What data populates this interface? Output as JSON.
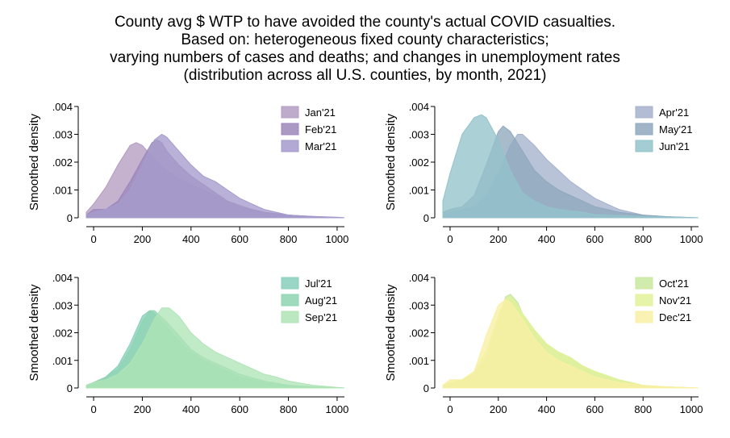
{
  "title_lines": [
    "County avg $ WTP to have avoided the county's actual COVID casualties.",
    "Based on: heterogeneous fixed county characteristics;",
    "varying numbers of cases and deaths; and changes in unemployment rates",
    "(distribution across all U.S. counties, by month, 2021)"
  ],
  "chart_data": [
    {
      "type": "area",
      "ylabel": "Smoothed density",
      "xlim": [
        -30,
        1030
      ],
      "ylim": [
        0,
        0.004
      ],
      "xticks": [
        "0",
        "200",
        "400",
        "600",
        "800",
        "1000"
      ],
      "yticks": [
        "0",
        ".001",
        ".002",
        ".003",
        ".004"
      ],
      "legend_position": "top-right",
      "series": [
        {
          "name": "Jan'21",
          "color": "#b39cc2",
          "x": [
            -30,
            0,
            50,
            100,
            150,
            175,
            200,
            250,
            300,
            350,
            400,
            450,
            500,
            550,
            600,
            650,
            700,
            750,
            800,
            900,
            1000,
            1030
          ],
          "y": [
            0.0002,
            0.0005,
            0.0011,
            0.0019,
            0.0026,
            0.0027,
            0.0026,
            0.0021,
            0.0017,
            0.0014,
            0.0012,
            0.001,
            0.0008,
            0.0006,
            0.00045,
            0.0003,
            0.0002,
            0.00015,
            0.0001,
            5e-05,
            2e-05,
            0
          ]
        },
        {
          "name": "Feb'21",
          "color": "#9d86bb",
          "x": [
            -30,
            0,
            50,
            100,
            150,
            200,
            240,
            260,
            280,
            300,
            350,
            400,
            450,
            500,
            550,
            600,
            650,
            700,
            800,
            900,
            1030
          ],
          "y": [
            0.0001,
            0.0003,
            0.0003,
            0.0006,
            0.0013,
            0.0021,
            0.0027,
            0.0028,
            0.0027,
            0.0024,
            0.0019,
            0.0015,
            0.0012,
            0.0009,
            0.0006,
            0.0004,
            0.0003,
            0.0002,
            0.0001,
            4e-05,
            0
          ]
        },
        {
          "name": "Mar'21",
          "color": "#a59bcc",
          "x": [
            -30,
            0,
            50,
            100,
            150,
            200,
            250,
            280,
            300,
            350,
            400,
            450,
            500,
            550,
            600,
            650,
            700,
            800,
            900,
            1030
          ],
          "y": [
            0.0001,
            0.0002,
            0.0003,
            0.0005,
            0.001,
            0.0019,
            0.0028,
            0.003,
            0.0029,
            0.0024,
            0.0019,
            0.0015,
            0.0013,
            0.001,
            0.0007,
            0.0005,
            0.0003,
            0.0001,
            5e-05,
            0
          ]
        }
      ]
    },
    {
      "type": "area",
      "ylabel": "Smoothed density",
      "xlim": [
        -30,
        1030
      ],
      "ylim": [
        0,
        0.004
      ],
      "xticks": [
        "0",
        "200",
        "400",
        "600",
        "800",
        "1000"
      ],
      "yticks": [
        "0",
        ".001",
        ".002",
        ".003",
        ".004"
      ],
      "legend_position": "top-right",
      "series": [
        {
          "name": "Apr'21",
          "color": "#a4b2cd",
          "x": [
            -30,
            0,
            50,
            100,
            150,
            200,
            250,
            280,
            300,
            350,
            400,
            450,
            500,
            550,
            600,
            650,
            700,
            800,
            900,
            1030
          ],
          "y": [
            0.0001,
            0.0002,
            0.0003,
            0.0004,
            0.0008,
            0.0016,
            0.0026,
            0.003,
            0.003,
            0.0026,
            0.0021,
            0.0017,
            0.0013,
            0.001,
            0.0007,
            0.0005,
            0.0003,
            0.0001,
            4e-05,
            0
          ]
        },
        {
          "name": "May'21",
          "color": "#8fa8bd",
          "x": [
            -30,
            0,
            50,
            100,
            150,
            200,
            220,
            250,
            300,
            350,
            400,
            450,
            500,
            550,
            600,
            650,
            700,
            800,
            900,
            1030
          ],
          "y": [
            0.0002,
            0.0003,
            0.0004,
            0.0008,
            0.0019,
            0.0031,
            0.0033,
            0.0031,
            0.0024,
            0.0017,
            0.0013,
            0.001,
            0.0008,
            0.0006,
            0.0004,
            0.0003,
            0.0002,
            0.0001,
            4e-05,
            0
          ]
        },
        {
          "name": "Jun'21",
          "color": "#93c3cb",
          "x": [
            -30,
            0,
            50,
            100,
            130,
            150,
            200,
            250,
            300,
            350,
            400,
            450,
            500,
            550,
            600,
            700,
            800,
            900,
            1030
          ],
          "y": [
            0.0006,
            0.0016,
            0.003,
            0.0036,
            0.0037,
            0.0036,
            0.0028,
            0.0017,
            0.0009,
            0.0006,
            0.0004,
            0.0003,
            0.00025,
            0.0002,
            0.00012,
            8e-05,
            5e-05,
            2e-05,
            0
          ]
        }
      ]
    },
    {
      "type": "area",
      "ylabel": "Smoothed density",
      "xlim": [
        -30,
        1030
      ],
      "ylim": [
        0,
        0.004
      ],
      "xticks": [
        "0",
        "200",
        "400",
        "600",
        "800",
        "1000"
      ],
      "yticks": [
        "0",
        ".001",
        ".002",
        ".003",
        ".004"
      ],
      "legend_position": "top-right",
      "series": [
        {
          "name": "Jul'21",
          "color": "#88cfbc",
          "x": [
            -30,
            0,
            50,
            100,
            150,
            200,
            230,
            250,
            300,
            350,
            400,
            450,
            500,
            550,
            600,
            700,
            800,
            900,
            1030
          ],
          "y": [
            0.0001,
            0.0002,
            0.0004,
            0.0008,
            0.0016,
            0.0026,
            0.0028,
            0.0027,
            0.0022,
            0.0017,
            0.0013,
            0.001,
            0.0008,
            0.0006,
            0.0004,
            0.0002,
            0.0001,
            4e-05,
            0
          ]
        },
        {
          "name": "Aug'21",
          "color": "#8ed4b2",
          "x": [
            -30,
            0,
            50,
            100,
            150,
            200,
            230,
            250,
            300,
            350,
            400,
            450,
            500,
            550,
            600,
            700,
            800,
            900,
            1030
          ],
          "y": [
            0.0001,
            0.0002,
            0.0004,
            0.0007,
            0.0014,
            0.0024,
            0.0028,
            0.0028,
            0.0024,
            0.0019,
            0.0014,
            0.0011,
            0.0009,
            0.0007,
            0.0005,
            0.00025,
            0.0001,
            4e-05,
            0
          ]
        },
        {
          "name": "Sep'21",
          "color": "#b0e4b6",
          "x": [
            -30,
            0,
            50,
            100,
            150,
            200,
            250,
            280,
            310,
            350,
            400,
            450,
            500,
            550,
            600,
            650,
            700,
            750,
            800,
            900,
            1030
          ],
          "y": [
            0.0001,
            0.0002,
            0.0003,
            0.0005,
            0.0009,
            0.0016,
            0.0025,
            0.0029,
            0.0029,
            0.0026,
            0.002,
            0.0016,
            0.0013,
            0.0011,
            0.0009,
            0.0007,
            0.0005,
            0.0004,
            0.00025,
            0.0001,
            0
          ]
        }
      ]
    },
    {
      "type": "area",
      "ylabel": "Smoothed density",
      "xlim": [
        -30,
        1030
      ],
      "ylim": [
        0,
        0.004
      ],
      "xticks": [
        "0",
        "200",
        "400",
        "600",
        "800",
        "1000"
      ],
      "yticks": [
        "0",
        ".001",
        ".002",
        ".003",
        ".004"
      ],
      "legend_position": "top-right",
      "series": [
        {
          "name": "Oct'21",
          "color": "#c8e89c",
          "x": [
            -30,
            0,
            50,
            100,
            150,
            200,
            230,
            250,
            280,
            300,
            350,
            400,
            450,
            500,
            550,
            600,
            700,
            800,
            900,
            1030
          ],
          "y": [
            0.0001,
            0.0002,
            0.0003,
            0.0005,
            0.0011,
            0.0024,
            0.0033,
            0.0034,
            0.0031,
            0.0027,
            0.0021,
            0.0016,
            0.0013,
            0.0011,
            0.0008,
            0.0006,
            0.0003,
            0.0001,
            4e-05,
            0
          ]
        },
        {
          "name": "Nov'21",
          "color": "#e2f29a",
          "x": [
            -30,
            0,
            50,
            100,
            150,
            200,
            230,
            250,
            280,
            300,
            350,
            400,
            450,
            500,
            550,
            600,
            700,
            800,
            900,
            1030
          ],
          "y": [
            0.0001,
            0.0002,
            0.0003,
            0.0006,
            0.0013,
            0.0026,
            0.0032,
            0.0033,
            0.003,
            0.0027,
            0.0021,
            0.0016,
            0.0013,
            0.0011,
            0.0008,
            0.0006,
            0.0003,
            0.0001,
            4e-05,
            0
          ]
        },
        {
          "name": "Dec'21",
          "color": "#f9f0a4",
          "x": [
            -30,
            0,
            50,
            100,
            150,
            200,
            230,
            250,
            300,
            350,
            400,
            450,
            500,
            550,
            600,
            700,
            800,
            900,
            1030
          ],
          "y": [
            0.0001,
            0.0003,
            0.0003,
            0.0006,
            0.0019,
            0.003,
            0.0032,
            0.0031,
            0.0025,
            0.0018,
            0.0013,
            0.001,
            0.0008,
            0.0006,
            0.0004,
            0.0002,
            0.0001,
            4e-05,
            0
          ]
        }
      ]
    }
  ]
}
